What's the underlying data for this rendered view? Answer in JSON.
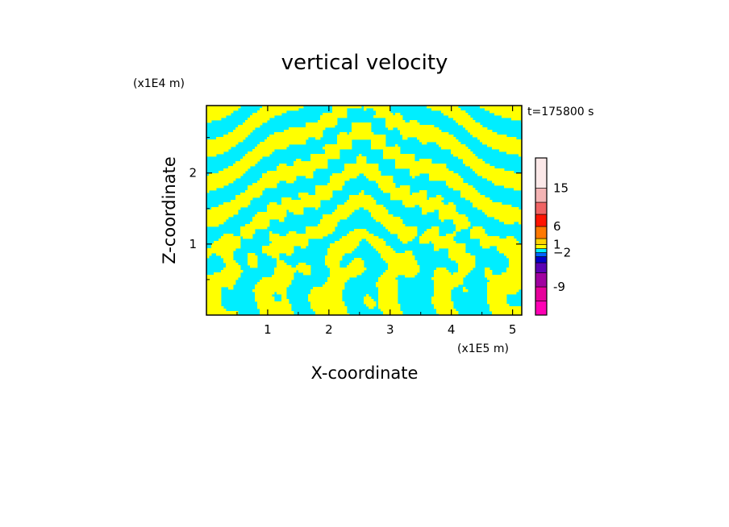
{
  "chart_data": {
    "type": "heatmap",
    "title": "vertical velocity",
    "xlabel": "X-coordinate",
    "ylabel": "Z-coordinate",
    "x_unit": "(x1E5 m)",
    "y_unit": "(x1E4 m)",
    "time_label": "t=175800 s",
    "xlim": [
      0,
      5.15
    ],
    "ylim": [
      0,
      2.95
    ],
    "x_ticks": [
      1,
      2,
      3,
      4,
      5
    ],
    "y_ticks": [
      1,
      2
    ],
    "x_tick_labels": [
      "1",
      "2",
      "3",
      "4",
      "5"
    ],
    "y_tick_labels": [
      "1",
      "2"
    ],
    "field_colors": {
      "positive": "#ffff00",
      "negative": "#00eeff"
    },
    "colorbar": {
      "levels_bottom_to_top": [
        {
          "color": "#ff00b4"
        },
        {
          "color": "#e6009b"
        },
        {
          "color": "#a000a0"
        },
        {
          "color": "#5a00b4"
        },
        {
          "color": "#0000c8"
        },
        {
          "color": "#0064ff"
        },
        {
          "color": "#00eeff"
        },
        {
          "color": "#ffff00"
        },
        {
          "color": "#ffd200"
        },
        {
          "color": "#ff7800"
        },
        {
          "color": "#ff1400"
        },
        {
          "color": "#f06464"
        },
        {
          "color": "#f4b4b4"
        },
        {
          "color": "#fce8e8"
        }
      ],
      "tick_labels": [
        {
          "text": "-9",
          "level_index": 1
        },
        {
          "text": "−2",
          "level_index": 5
        },
        {
          "text": "1",
          "level_index": 7
        },
        {
          "text": "6",
          "level_index": 9
        },
        {
          "text": "15",
          "level_index": 12
        }
      ]
    }
  }
}
